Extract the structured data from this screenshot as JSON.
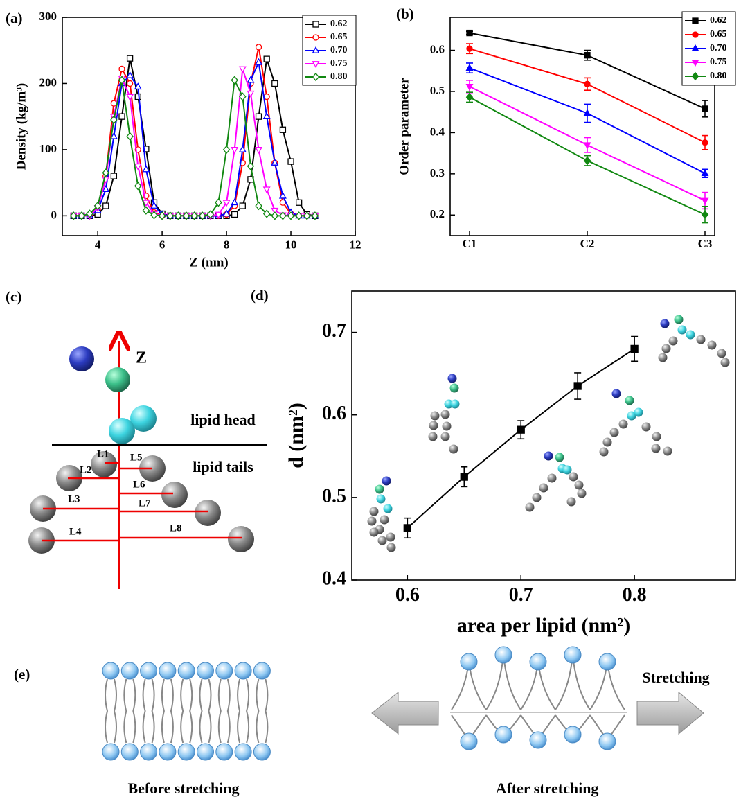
{
  "chart_data": [
    {
      "type": "line",
      "label": "(a)",
      "x_label": "Z (nm)",
      "y_label": "Density (kg/m³)",
      "xlim": [
        2.9,
        12
      ],
      "xticks": [
        4,
        6,
        8,
        10,
        12
      ],
      "ylim": [
        -30,
        300
      ],
      "yticks": [
        0,
        100,
        200,
        300
      ],
      "legend": "upper right",
      "hollow_markers": true,
      "x": [
        3.25,
        3.5,
        3.75,
        4.0,
        4.25,
        4.5,
        4.75,
        5.0,
        5.25,
        5.5,
        5.75,
        6.0,
        6.25,
        6.5,
        6.75,
        7.0,
        7.25,
        7.5,
        7.75,
        8.0,
        8.25,
        8.5,
        8.75,
        9.0,
        9.25,
        9.5,
        9.75,
        10.0,
        10.25,
        10.5,
        10.75
      ],
      "series": [
        {
          "name": "0.62",
          "color": "#000000",
          "marker": "square",
          "values": [
            0,
            0,
            0,
            2,
            15,
            60,
            150,
            238,
            180,
            101,
            20,
            3,
            0,
            0,
            0,
            0,
            0,
            0,
            0,
            0,
            2,
            15,
            55,
            150,
            237,
            200,
            130,
            82,
            20,
            2,
            0
          ]
        },
        {
          "name": "0.65",
          "color": "#ff0000",
          "marker": "circle",
          "values": [
            0,
            0,
            1,
            10,
            60,
            170,
            222,
            200,
            100,
            30,
            5,
            0,
            0,
            0,
            0,
            0,
            0,
            0,
            0,
            2,
            15,
            80,
            200,
            255,
            180,
            80,
            20,
            3,
            0,
            0,
            0
          ]
        },
        {
          "name": "0.70",
          "color": "#0000ff",
          "marker": "triangle-up",
          "values": [
            0,
            0,
            0,
            8,
            40,
            120,
            200,
            212,
            195,
            70,
            15,
            2,
            0,
            0,
            0,
            0,
            0,
            0,
            0,
            3,
            20,
            100,
            205,
            232,
            150,
            80,
            30,
            5,
            0,
            0,
            0
          ]
        },
        {
          "name": "0.75",
          "color": "#ff00ff",
          "marker": "triangle-down",
          "values": [
            0,
            0,
            0,
            12,
            55,
            150,
            208,
            180,
            75,
            20,
            3,
            0,
            0,
            0,
            0,
            0,
            0,
            0,
            2,
            20,
            100,
            222,
            185,
            100,
            40,
            8,
            1,
            0,
            0,
            0,
            0
          ]
        },
        {
          "name": "0.80",
          "color": "#118811",
          "marker": "diamond",
          "values": [
            0,
            0,
            3,
            15,
            65,
            145,
            205,
            120,
            45,
            8,
            1,
            0,
            0,
            0,
            0,
            0,
            0,
            2,
            20,
            100,
            205,
            180,
            75,
            15,
            3,
            0,
            0,
            0,
            0,
            0,
            0
          ]
        }
      ]
    },
    {
      "type": "line",
      "label": "(b)",
      "y_label": "Order parameter",
      "categories": [
        "C1",
        "C2",
        "C3"
      ],
      "ylim": [
        0.15,
        0.68
      ],
      "yticks": [
        0.2,
        0.3,
        0.4,
        0.5,
        0.6
      ],
      "legend": "upper right",
      "hollow_markers": false,
      "series": [
        {
          "name": "0.62",
          "color": "#000000",
          "marker": "square",
          "values": [
            0.642,
            0.588,
            0.458
          ],
          "errors": [
            0.004,
            0.012,
            0.02
          ]
        },
        {
          "name": "0.65",
          "color": "#ff0000",
          "marker": "circle",
          "values": [
            0.604,
            0.518,
            0.376
          ],
          "errors": [
            0.012,
            0.015,
            0.017
          ]
        },
        {
          "name": "0.70",
          "color": "#0000ff",
          "marker": "triangle-up",
          "values": [
            0.557,
            0.447,
            0.301
          ],
          "errors": [
            0.012,
            0.022,
            0.01
          ]
        },
        {
          "name": "0.75",
          "color": "#ff00ff",
          "marker": "triangle-down",
          "values": [
            0.512,
            0.37,
            0.235
          ],
          "errors": [
            0.015,
            0.018,
            0.02
          ]
        },
        {
          "name": "0.80",
          "color": "#118811",
          "marker": "diamond",
          "values": [
            0.486,
            0.332,
            0.201
          ],
          "errors": [
            0.012,
            0.012,
            0.02
          ]
        }
      ]
    },
    {
      "type": "line",
      "label": "(d)",
      "x_label": "area per lipid (nm²)",
      "y_label": "d (nm²)",
      "xlim": [
        0.551,
        0.889
      ],
      "xticks": [
        0.6,
        0.7,
        0.8
      ],
      "ylim": [
        0.4,
        0.75
      ],
      "yticks": [
        0.4,
        0.5,
        0.6,
        0.7
      ],
      "color": "#000000",
      "marker": "square",
      "hollow_markers": false,
      "x": [
        0.6,
        0.65,
        0.7,
        0.75,
        0.8
      ],
      "values": [
        0.463,
        0.525,
        0.582,
        0.635,
        0.68
      ],
      "errors": [
        0.012,
        0.012,
        0.011,
        0.016,
        0.015
      ]
    }
  ],
  "diagram_c": {
    "label": "(c)",
    "axis": "Z",
    "head": "lipid head",
    "tails": "lipid tails",
    "lengths": [
      "L1",
      "L2",
      "L3",
      "L4",
      "L5",
      "L6",
      "L7",
      "L8"
    ]
  },
  "diagram_e": {
    "label": "(e)",
    "arrow": "Stretching",
    "before": "Before stretching",
    "after": "After stretching"
  }
}
